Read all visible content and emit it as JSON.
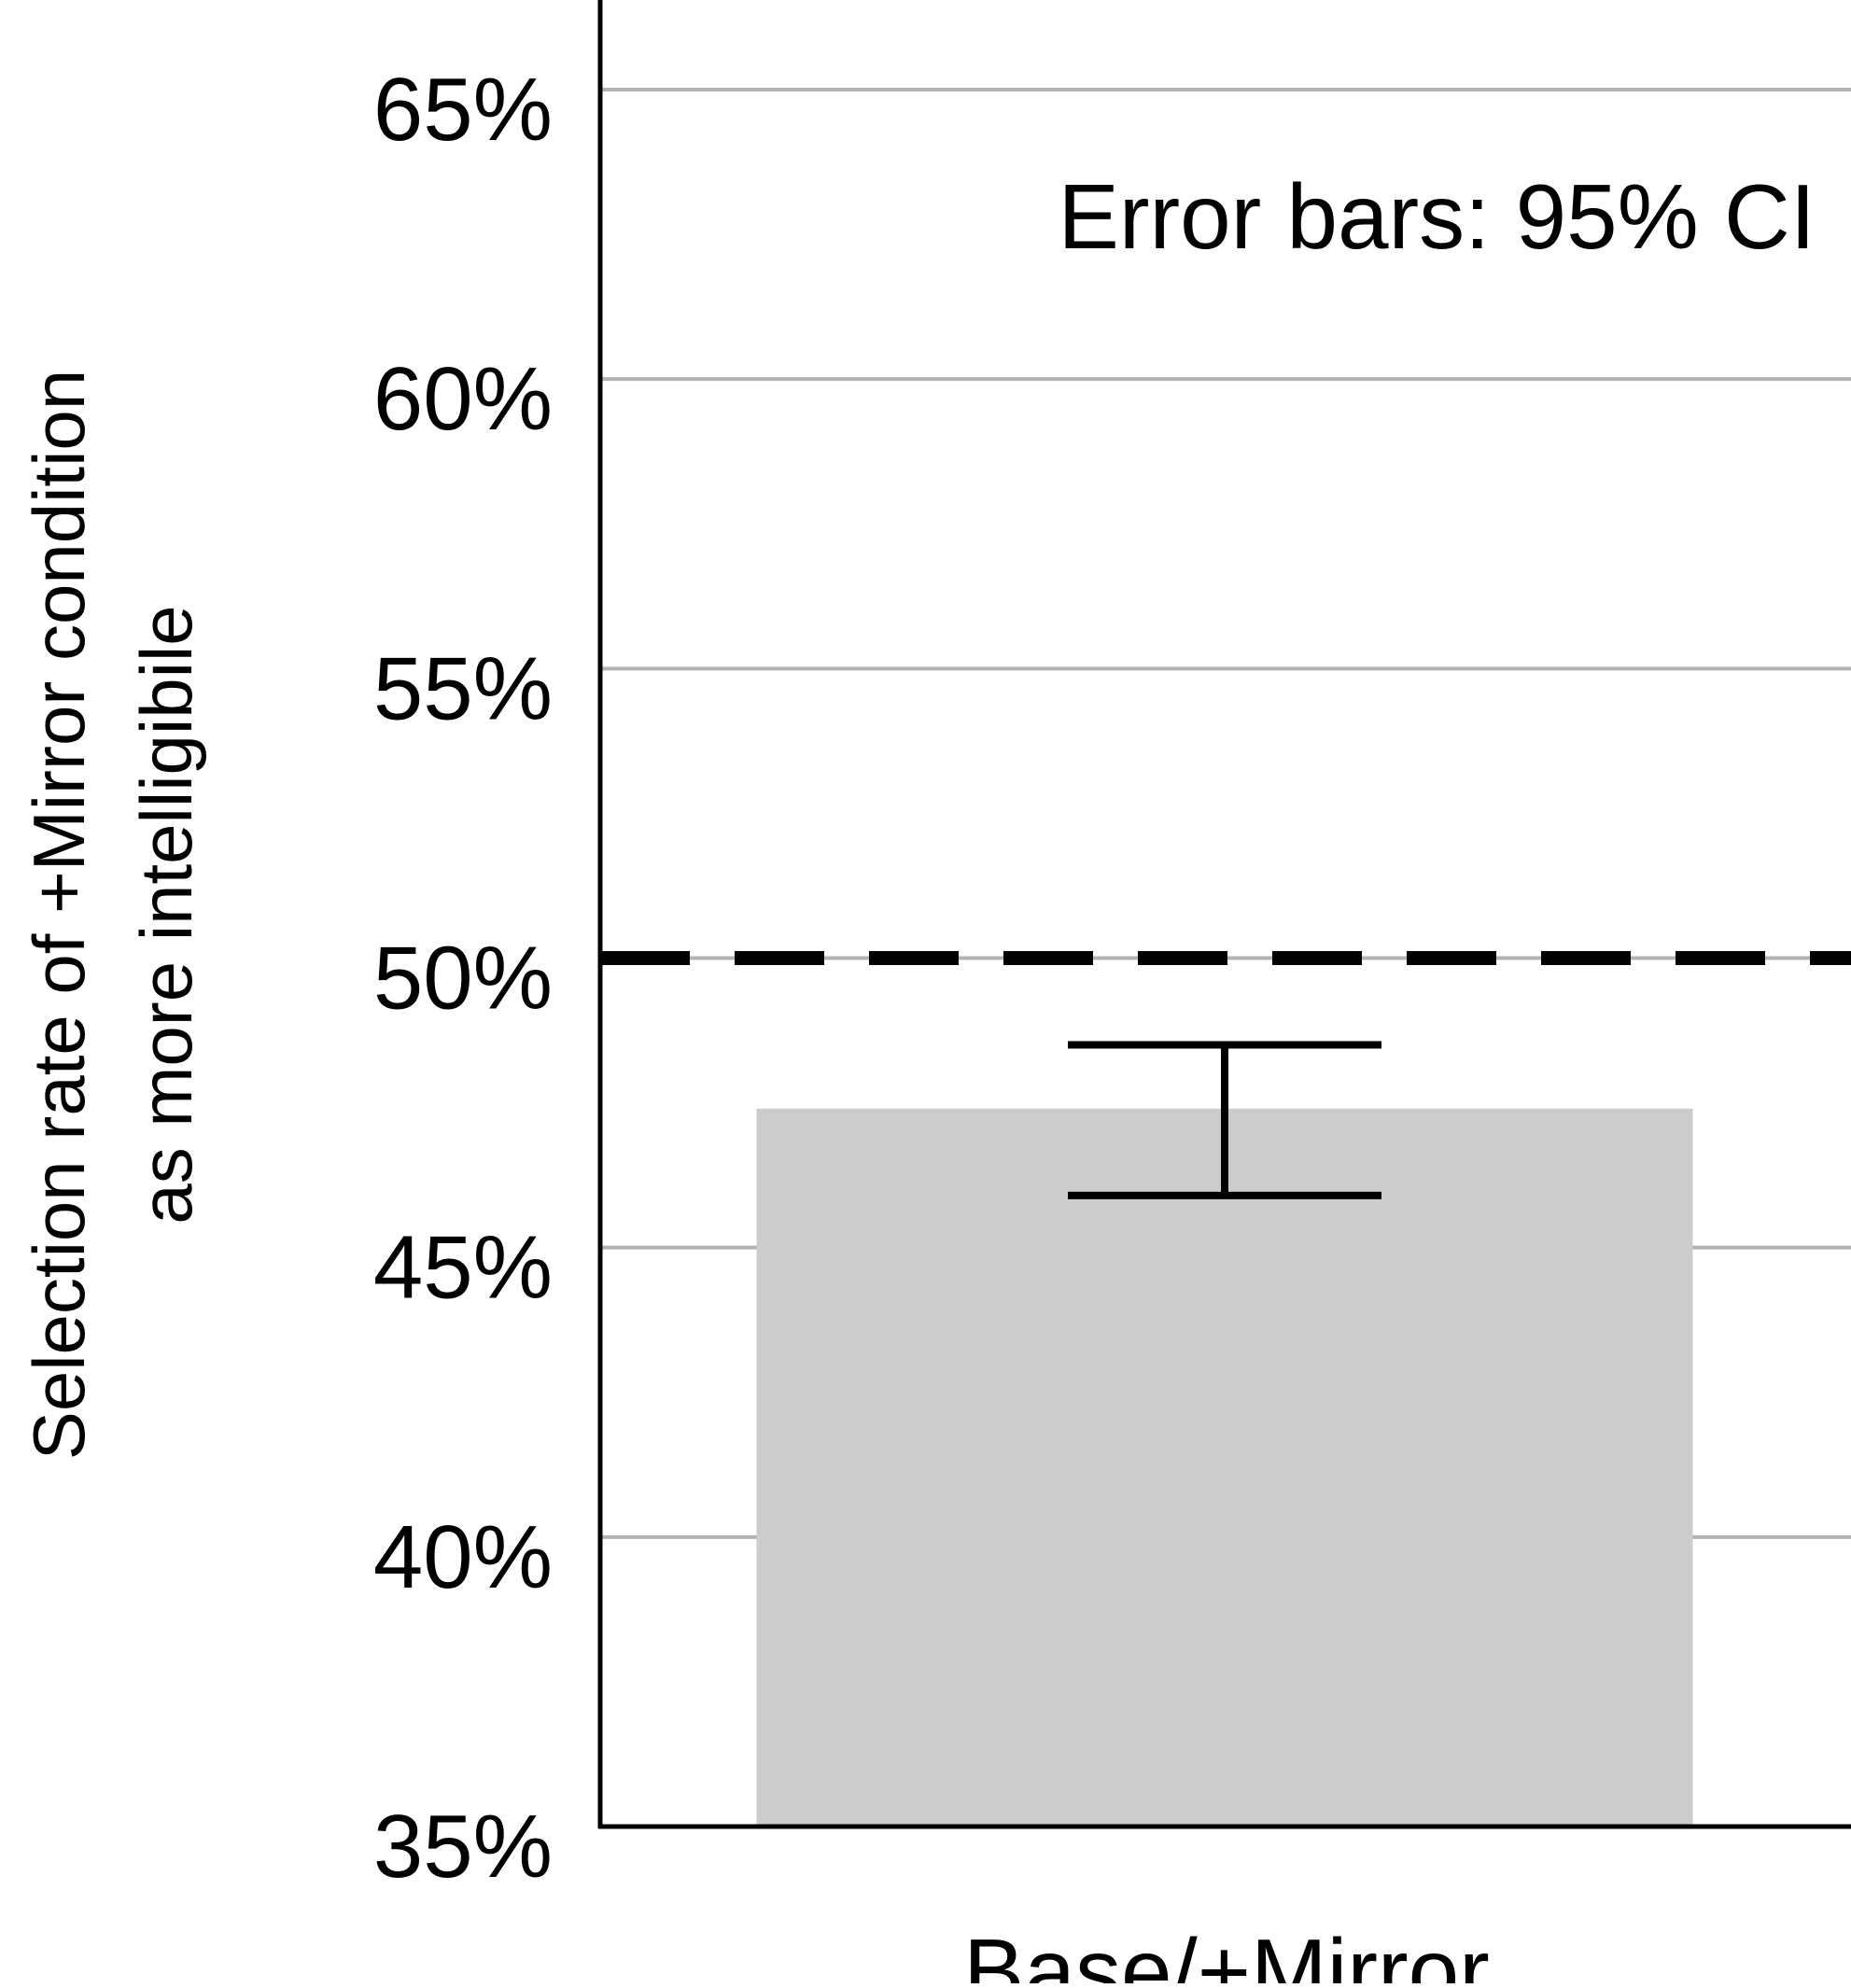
{
  "chart_data": {
    "type": "bar",
    "categories": [
      "Base/+Mirror"
    ],
    "values": [
      47.4
    ],
    "error_bars": [
      {
        "low": 45.9,
        "high": 48.5
      }
    ],
    "error_bars_label": "Error bars: 95% CI",
    "reference_line": {
      "value": 50,
      "style": "dashed"
    },
    "ylabel_lines": [
      "Selection rate of +Mirror condition",
      "as more intelligibile"
    ],
    "ylim": [
      35,
      65
    ],
    "yticks": [
      35,
      40,
      45,
      50,
      55,
      60,
      65
    ],
    "ytick_labels": [
      "35%",
      "40%",
      "45%",
      "50%",
      "55%",
      "60%",
      "65%"
    ],
    "grid": true,
    "colors": {
      "bar": "#cccccc",
      "grid": "#b3b3b3",
      "axis": "#000000",
      "error_bar": "#000000",
      "reference_line": "#000000"
    }
  }
}
